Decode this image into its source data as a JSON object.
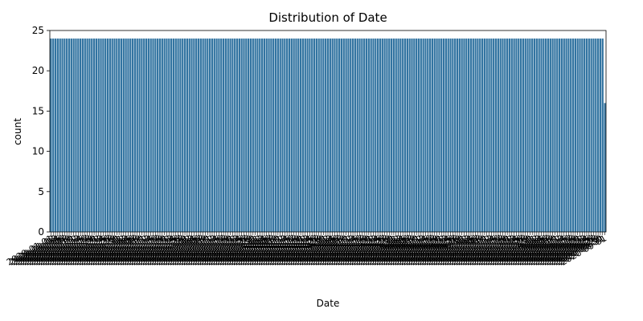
{
  "chart_data": {
    "type": "bar",
    "title": "Distribution of Date",
    "xlabel": "Date",
    "ylabel": "count",
    "ylim": [
      0,
      25
    ],
    "yticks": [
      0,
      5,
      10,
      15,
      20,
      25
    ],
    "grid": false,
    "bar_color": "#3274a1",
    "categories": [
      "2020-01-01",
      "2020-01-02",
      "2020-01-03",
      "2020-01-04",
      "2020-01-05",
      "2020-01-06",
      "2020-01-07",
      "2020-01-08",
      "2020-01-09",
      "2020-01-10",
      "2020-01-11",
      "2020-01-12",
      "2020-01-13",
      "2020-01-14",
      "2020-01-15",
      "2020-01-16",
      "2020-01-17",
      "2020-01-18",
      "2020-01-19",
      "2020-01-20",
      "2020-01-21",
      "2020-01-22",
      "2020-01-23",
      "2020-01-24",
      "2020-01-25",
      "2020-01-26",
      "2020-01-27",
      "2020-01-28",
      "2020-01-29",
      "2020-01-30",
      "2020-01-31",
      "2020-02-01",
      "2020-02-02",
      "2020-02-03",
      "2020-02-04",
      "2020-02-05",
      "2020-02-06",
      "2020-02-07",
      "2020-02-08",
      "2020-02-09",
      "2020-02-10",
      "2020-02-11",
      "2020-02-12",
      "2020-02-13",
      "2020-02-14",
      "2020-02-15",
      "2020-02-16",
      "2020-02-17",
      "2020-02-18",
      "2020-02-19",
      "2020-02-20",
      "2020-02-21",
      "2020-02-22",
      "2020-02-23",
      "2020-02-24",
      "2020-02-25",
      "2020-02-26",
      "2020-02-27",
      "2020-02-28",
      "2020-02-29",
      "2020-03-01",
      "2020-03-02",
      "2020-03-03",
      "2020-03-04",
      "2020-03-05",
      "2020-03-06",
      "2020-03-07",
      "2020-03-08",
      "2020-03-09",
      "2020-03-10",
      "2020-03-11",
      "2020-03-12",
      "2020-03-13",
      "2020-03-14",
      "2020-03-15",
      "2020-03-16",
      "2020-03-17",
      "2020-03-18",
      "2020-03-19",
      "2020-03-20",
      "2020-03-21",
      "2020-03-22",
      "2020-03-23",
      "2020-03-24",
      "2020-03-25",
      "2020-03-26",
      "2020-03-27",
      "2020-03-28",
      "2020-03-29",
      "2020-03-30",
      "2020-03-31",
      "2020-04-01",
      "2020-04-02",
      "2020-04-03",
      "2020-04-04",
      "2020-04-05",
      "2020-04-06",
      "2020-04-07",
      "2020-04-08",
      "2020-04-09",
      "2020-04-10",
      "2020-04-11",
      "2020-04-12",
      "2020-04-13",
      "2020-04-14",
      "2020-04-15",
      "2020-04-16",
      "2020-04-17",
      "2020-04-18",
      "2020-04-19",
      "2020-04-20",
      "2020-04-21",
      "2020-04-22",
      "2020-04-23",
      "2020-04-24",
      "2020-04-25",
      "2020-04-26",
      "2020-04-27",
      "2020-04-28",
      "2020-04-29",
      "2020-04-30",
      "2020-05-01",
      "2020-05-02",
      "2020-05-03",
      "2020-05-04",
      "2020-05-05",
      "2020-05-06",
      "2020-05-07",
      "2020-05-08",
      "2020-05-09",
      "2020-05-10",
      "2020-05-11",
      "2020-05-12",
      "2020-05-13",
      "2020-05-14",
      "2020-05-15",
      "2020-05-16",
      "2020-05-17",
      "2020-05-18",
      "2020-05-19",
      "2020-05-20",
      "2020-05-21",
      "2020-05-22",
      "2020-05-23",
      "2020-05-24",
      "2020-05-25",
      "2020-05-26",
      "2020-05-27",
      "2020-05-28",
      "2020-05-29",
      "2020-05-30",
      "2020-05-31",
      "2020-06-01",
      "2020-06-02",
      "2020-06-03",
      "2020-06-04",
      "2020-06-05",
      "2020-06-06",
      "2020-06-07",
      "2020-06-08",
      "2020-06-09",
      "2020-06-10",
      "2020-06-11",
      "2020-06-12",
      "2020-06-13",
      "2020-06-14",
      "2020-06-15",
      "2020-06-16",
      "2020-06-17",
      "2020-06-18",
      "2020-06-19",
      "2020-06-20",
      "2020-06-21",
      "2020-06-22",
      "2020-06-23",
      "2020-06-24",
      "2020-06-25",
      "2020-06-26",
      "2020-06-27",
      "2020-06-28",
      "2020-06-29",
      "2020-06-30",
      "2020-07-01",
      "2020-07-02",
      "2020-07-03",
      "2020-07-04",
      "2020-07-05",
      "2020-07-06",
      "2020-07-07",
      "2020-07-08",
      "2020-07-09",
      "2020-07-10",
      "2020-07-11",
      "2020-07-12",
      "2020-07-13",
      "2020-07-14",
      "2020-07-15",
      "2020-07-16",
      "2020-07-17",
      "2020-07-18",
      "2020-07-19",
      "2020-07-20",
      "2020-07-21",
      "2020-07-22",
      "2020-07-23",
      "2020-07-24",
      "2020-07-25",
      "2020-07-26",
      "2020-07-27",
      "2020-07-28",
      "2020-07-29",
      "2020-07-30",
      "2020-07-31",
      "2020-08-01",
      "2020-08-02",
      "2020-08-03",
      "2020-08-04",
      "2020-08-05",
      "2020-08-06",
      "2020-08-07",
      "2020-08-08",
      "2020-08-09",
      "2020-08-10",
      "2020-08-11",
      "2020-08-12",
      "2020-08-13",
      "2020-08-14",
      "2020-08-15",
      "2020-08-16",
      "2020-08-17",
      "2020-08-18",
      "2020-08-19",
      "2020-08-20",
      "2020-08-21",
      "2020-08-22",
      "2020-08-23",
      "2020-08-24",
      "2020-08-25",
      "2020-08-26",
      "2020-08-27",
      "2020-08-28",
      "2020-08-29",
      "2020-08-30",
      "2020-08-31",
      "2020-09-01"
    ],
    "values": [
      24,
      24,
      24,
      24,
      24,
      24,
      24,
      24,
      24,
      24,
      24,
      24,
      24,
      24,
      24,
      24,
      24,
      24,
      24,
      24,
      24,
      24,
      24,
      24,
      24,
      24,
      24,
      24,
      24,
      24,
      24,
      24,
      24,
      24,
      24,
      24,
      24,
      24,
      24,
      24,
      24,
      24,
      24,
      24,
      24,
      24,
      24,
      24,
      24,
      24,
      24,
      24,
      24,
      24,
      24,
      24,
      24,
      24,
      24,
      24,
      24,
      24,
      24,
      24,
      24,
      24,
      24,
      24,
      24,
      24,
      24,
      24,
      24,
      24,
      24,
      24,
      24,
      24,
      24,
      24,
      24,
      24,
      24,
      24,
      24,
      24,
      24,
      24,
      24,
      24,
      24,
      24,
      24,
      24,
      24,
      24,
      24,
      24,
      24,
      24,
      24,
      24,
      24,
      24,
      24,
      24,
      24,
      24,
      24,
      24,
      24,
      24,
      24,
      24,
      24,
      24,
      24,
      24,
      24,
      24,
      24,
      24,
      24,
      24,
      24,
      24,
      24,
      24,
      24,
      24,
      24,
      24,
      24,
      24,
      24,
      24,
      24,
      24,
      24,
      24,
      24,
      24,
      24,
      24,
      24,
      24,
      24,
      24,
      24,
      24,
      24,
      24,
      24,
      24,
      24,
      24,
      24,
      24,
      24,
      24,
      24,
      24,
      24,
      24,
      24,
      24,
      24,
      24,
      24,
      24,
      24,
      24,
      24,
      24,
      24,
      24,
      24,
      24,
      24,
      24,
      24,
      24,
      24,
      24,
      24,
      24,
      24,
      24,
      24,
      24,
      24,
      24,
      24,
      24,
      24,
      24,
      24,
      24,
      24,
      24,
      24,
      24,
      24,
      24,
      24,
      24,
      24,
      24,
      24,
      24,
      24,
      24,
      24,
      24,
      24,
      24,
      24,
      24,
      24,
      24,
      24,
      24,
      24,
      24,
      24,
      24,
      24,
      24,
      24,
      24,
      24,
      24,
      24,
      24,
      24,
      24,
      24,
      24,
      24,
      24,
      24,
      24,
      24,
      24,
      16
    ]
  }
}
